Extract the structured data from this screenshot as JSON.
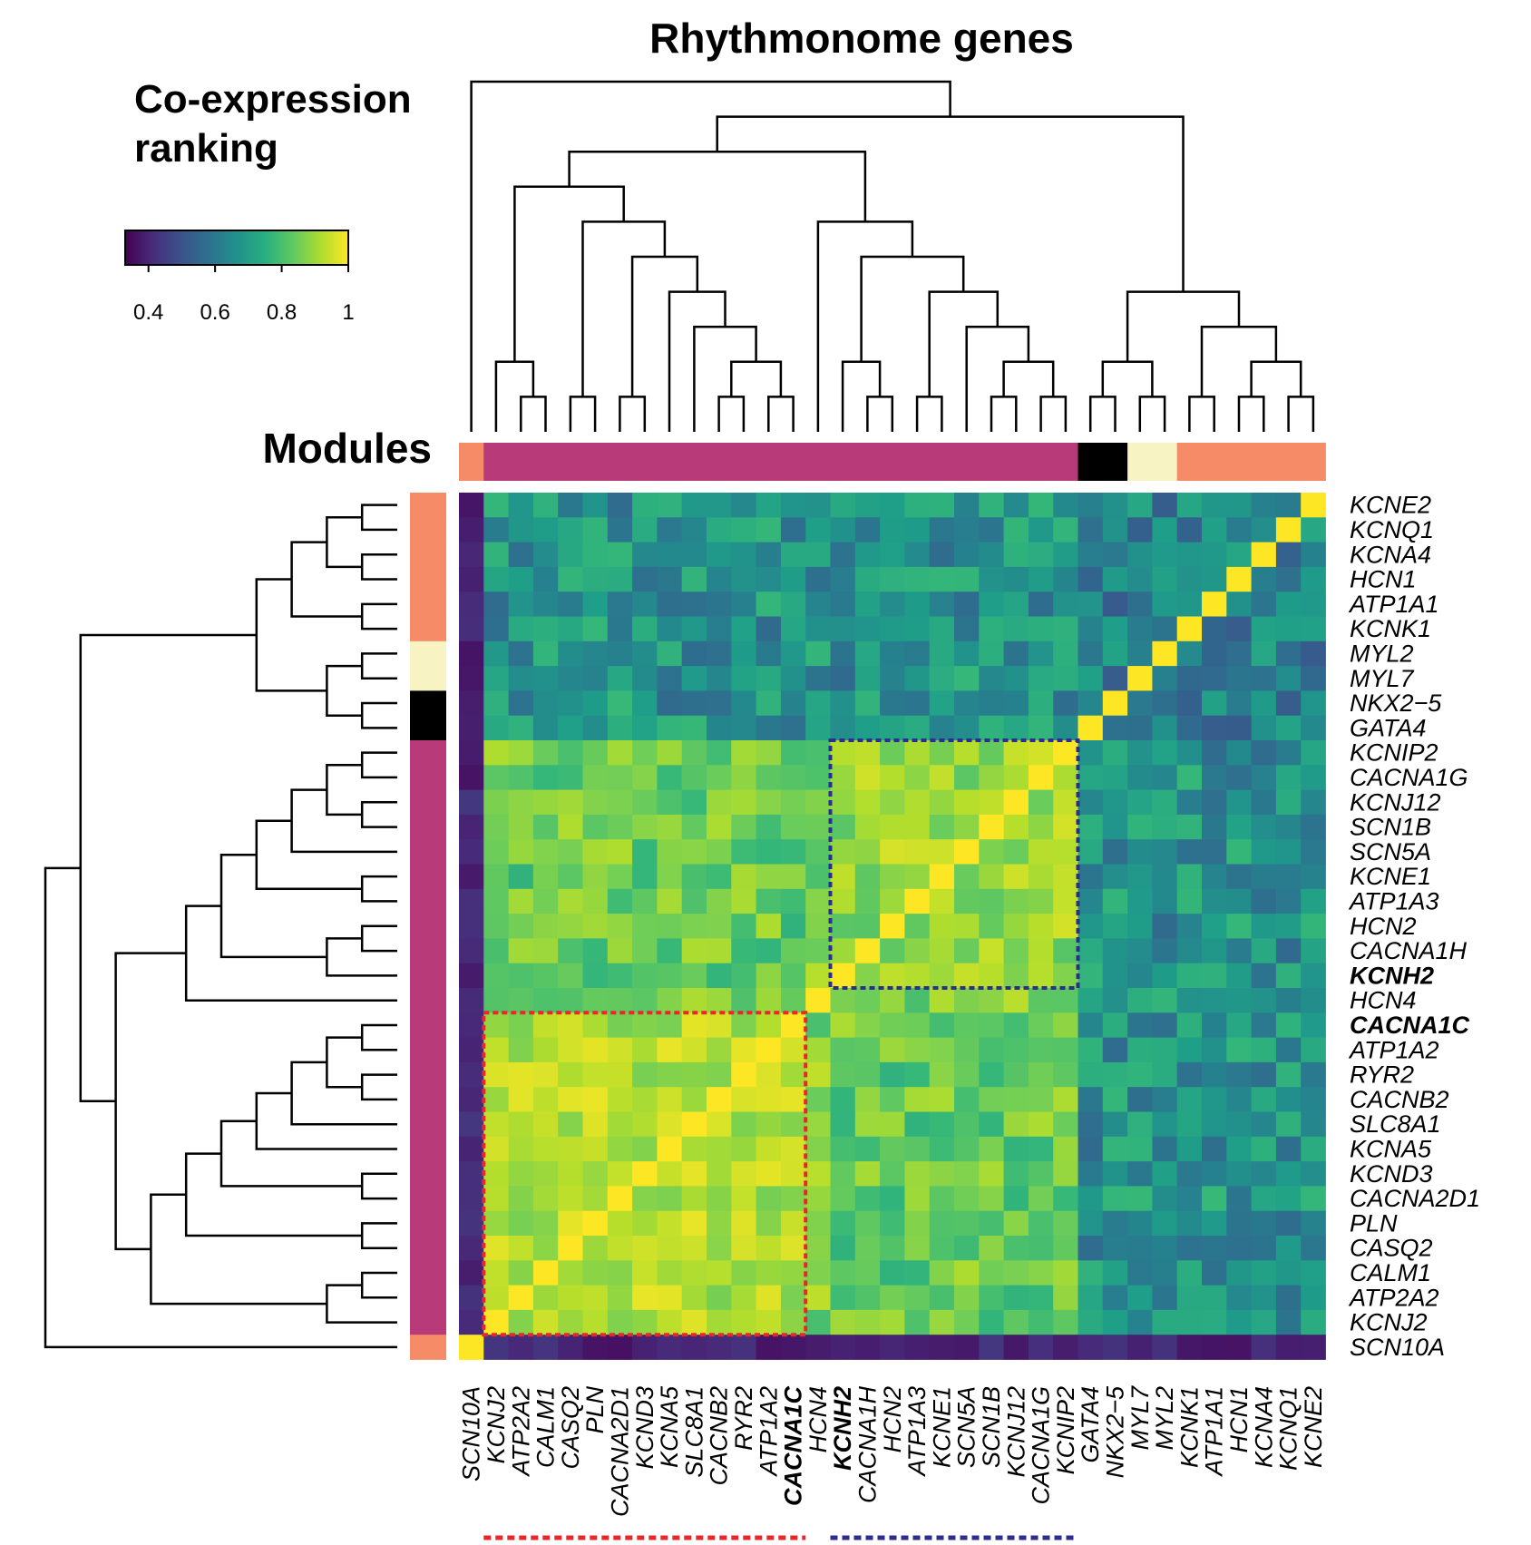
{
  "chart_data": {
    "type": "heatmap",
    "title": "Rhythmonome genes",
    "legend": {
      "title_line1": "Co-expression",
      "title_line2": "ranking",
      "range": [
        0.33,
        1.0
      ],
      "tick_labels": [
        "0.4",
        "0.6",
        "0.8",
        "1"
      ],
      "tick_values": [
        0.4,
        0.6,
        0.8,
        1.0
      ],
      "colormap": "viridis",
      "placement": "top-left"
    },
    "modules_label": "Modules",
    "rows": [
      "KCNE2",
      "KCNQ1",
      "KCNA4",
      "HCN1",
      "ATP1A1",
      "KCNK1",
      "MYL2",
      "MYL7",
      "NKX2−5",
      "GATA4",
      "KCNIP2",
      "CACNA1G",
      "KCNJ12",
      "SCN1B",
      "SCN5A",
      "KCNE1",
      "ATP1A3",
      "HCN2",
      "CACNA1H",
      "KCNH2",
      "HCN4",
      "CACNA1C",
      "ATP1A2",
      "RYR2",
      "CACNB2",
      "SLC8A1",
      "KCNA5",
      "KCND3",
      "CACNA2D1",
      "PLN",
      "CASQ2",
      "CALM1",
      "ATP2A2",
      "KCNJ2",
      "SCN10A"
    ],
    "columns": [
      "SCN10A",
      "KCNJ2",
      "ATP2A2",
      "CALM1",
      "CASQ2",
      "PLN",
      "CACNA2D1",
      "KCND3",
      "KCNA5",
      "SLC8A1",
      "CACNB2",
      "RYR2",
      "ATP1A2",
      "CACNA1C",
      "HCN4",
      "KCNH2",
      "CACNA1H",
      "HCN2",
      "ATP1A3",
      "KCNE1",
      "SCN5A",
      "SCN1B",
      "KCNJ12",
      "CACNA1G",
      "KCNIP2",
      "GATA4",
      "NKX2−5",
      "MYL7",
      "MYL2",
      "KCNK1",
      "ATP1A1",
      "HCN1",
      "KCNA4",
      "KCNQ1",
      "KCNE2"
    ],
    "bold_genes": [
      "KCNH2",
      "CACNA1C"
    ],
    "module_colors": {
      "salmon": "#F58B67",
      "magenta": "#B83A78",
      "cream": "#F7F3C2",
      "black": "#000000"
    },
    "row_modules": [
      "salmon",
      "salmon",
      "salmon",
      "salmon",
      "salmon",
      "salmon",
      "cream",
      "cream",
      "black",
      "black",
      "magenta",
      "magenta",
      "magenta",
      "magenta",
      "magenta",
      "magenta",
      "magenta",
      "magenta",
      "magenta",
      "magenta",
      "magenta",
      "magenta",
      "magenta",
      "magenta",
      "magenta",
      "magenta",
      "magenta",
      "magenta",
      "magenta",
      "magenta",
      "magenta",
      "magenta",
      "magenta",
      "magenta",
      "salmon"
    ],
    "col_modules": [
      "salmon",
      "magenta",
      "magenta",
      "magenta",
      "magenta",
      "magenta",
      "magenta",
      "magenta",
      "magenta",
      "magenta",
      "magenta",
      "magenta",
      "magenta",
      "magenta",
      "magenta",
      "magenta",
      "magenta",
      "magenta",
      "magenta",
      "magenta",
      "magenta",
      "magenta",
      "magenta",
      "magenta",
      "magenta",
      "black",
      "black",
      "cream",
      "cream",
      "salmon",
      "salmon",
      "salmon",
      "salmon",
      "salmon",
      "salmon"
    ],
    "highlight_boxes": [
      {
        "color": "#E8272A",
        "genes": [
          "KCNJ2",
          "ATP2A2",
          "CALM1",
          "CASQ2",
          "PLN",
          "CACNA2D1",
          "KCND3",
          "KCNA5",
          "SLC8A1",
          "CACNB2",
          "RYR2",
          "ATP1A2",
          "CACNA1C"
        ]
      },
      {
        "color": "#2B2E8E",
        "genes": [
          "KCNH2",
          "CACNA1H",
          "HCN2",
          "ATP1A3",
          "KCNE1",
          "SCN5A",
          "SCN1B",
          "KCNJ12",
          "CACNA1G",
          "KCNIP2"
        ]
      }
    ]
  }
}
